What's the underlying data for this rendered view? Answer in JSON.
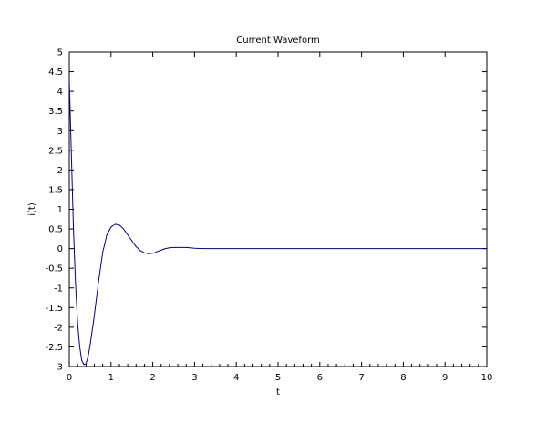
{
  "chart_data": {
    "type": "line",
    "title": "Current Waveform",
    "xlabel": "t",
    "ylabel": "i(t)",
    "xlim": [
      0,
      10
    ],
    "ylim": [
      -3,
      5
    ],
    "x_ticks": [
      0,
      1,
      2,
      3,
      4,
      5,
      6,
      7,
      8,
      9,
      10
    ],
    "x_tick_labels": [
      "0",
      "1",
      "2",
      "3",
      "4",
      "5",
      "6",
      "7",
      "8",
      "9",
      "10"
    ],
    "y_ticks": [
      5,
      4.5,
      4,
      3.5,
      3,
      2.5,
      2,
      1.5,
      1,
      0.5,
      0,
      -0.5,
      -1,
      -1.5,
      -2,
      -2.5,
      -3
    ],
    "y_tick_labels": [
      "5",
      "4.5",
      "4",
      "3.5",
      "3",
      "2.5",
      "2",
      "1.5",
      "1",
      "0.5",
      "0",
      "-0.5",
      "-1",
      "-1.5",
      "-2",
      "-2.5",
      "-3"
    ],
    "grid": false,
    "series": [
      {
        "name": "i(t)",
        "color": "#000080",
        "x": [
          0,
          0.05,
          0.1,
          0.15,
          0.2,
          0.25,
          0.3,
          0.35,
          0.4,
          0.45,
          0.5,
          0.6,
          0.7,
          0.8,
          0.9,
          1.0,
          1.1,
          1.2,
          1.3,
          1.4,
          1.5,
          1.6,
          1.7,
          1.8,
          1.9,
          2.0,
          2.1,
          2.2,
          2.3,
          2.4,
          2.5,
          2.6,
          2.7,
          2.8,
          2.9,
          3.0,
          3.2,
          3.5,
          4,
          5,
          6,
          7,
          8,
          9,
          10
        ],
        "values": [
          4.3,
          2.4,
          0.5,
          -0.9,
          -1.9,
          -2.5,
          -2.85,
          -2.95,
          -2.93,
          -2.75,
          -2.45,
          -1.7,
          -0.85,
          -0.1,
          0.35,
          0.55,
          0.62,
          0.6,
          0.5,
          0.35,
          0.2,
          0.05,
          -0.05,
          -0.11,
          -0.13,
          -0.12,
          -0.08,
          -0.04,
          0.0,
          0.02,
          0.03,
          0.03,
          0.03,
          0.03,
          0.02,
          0.01,
          0.0,
          0.0,
          0.0,
          0.0,
          0.0,
          0.0,
          0.0,
          0.0,
          0.0
        ]
      }
    ]
  }
}
